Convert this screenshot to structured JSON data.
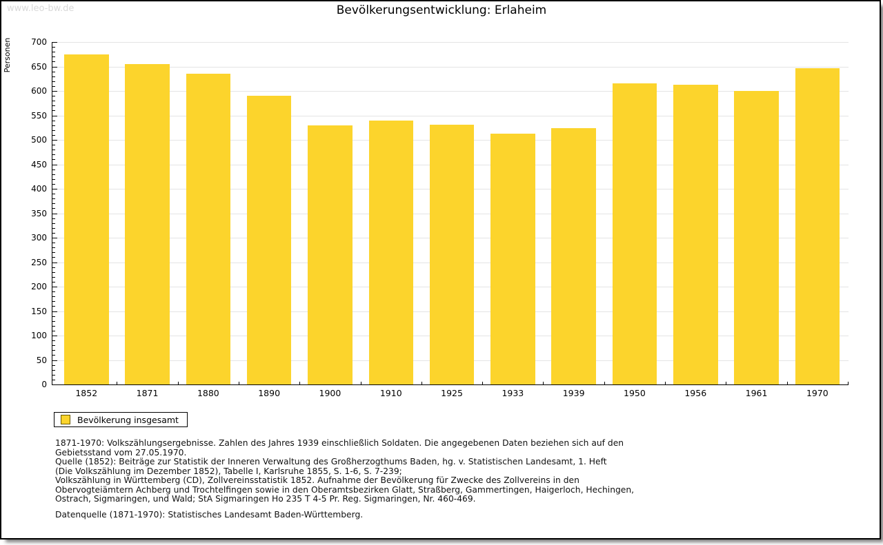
{
  "page": {
    "watermark": "www.leo-bw.de",
    "title": "Bevölkerungsentwicklung: Erlaheim"
  },
  "chart_data": {
    "type": "bar",
    "title": "Bevölkerungsentwicklung: Erlaheim",
    "xlabel": "",
    "ylabel": "Personen",
    "categories": [
      "1852",
      "1871",
      "1880",
      "1890",
      "1900",
      "1910",
      "1925",
      "1933",
      "1939",
      "1950",
      "1956",
      "1961",
      "1970"
    ],
    "series": [
      {
        "name": "Bevölkerung insgesamt",
        "values": [
          675,
          655,
          635,
          590,
          530,
          540,
          531,
          512,
          524,
          615,
          612,
          600,
          646
        ]
      }
    ],
    "ylim": [
      0,
      700
    ],
    "ytick_step": 50,
    "yminor_step": 10,
    "grid": true,
    "legend_position": "bottom-left",
    "bar_color": "#FCD42C",
    "swatch_border_color": "#6b5900",
    "grid_color": "#e4e4e4",
    "axis_color": "#000000"
  },
  "footer": {
    "lines": [
      "1871-1970: Volkszählungsergebnisse. Zahlen des Jahres 1939 einschließlich Soldaten. Die angegebenen Daten beziehen sich auf den",
      "Gebietsstand vom 27.05.1970.",
      "Quelle (1852): Beiträge zur Statistik der Inneren Verwaltung des Großherzogthums Baden, hg. v. Statistischen Landesamt, 1. Heft",
      "(Die Volkszählung im Dezember 1852), Tabelle I, Karlsruhe 1855, S. 1-6, S. 7-239;",
      "Volkszählung in Württemberg (CD), Zollvereinsstatistik 1852. Aufnahme der Bevölkerung für Zwecke des Zollvereins in den",
      "Obervogteiämtern Achberg und Trochtelfingen sowie in den Oberamtsbezirken Glatt, Straßberg, Gammertingen, Haigerloch, Hechingen,",
      "Ostrach, Sigmaringen, und Wald; StA Sigmaringen Ho 235 T 4-5 Pr. Reg. Sigmaringen, Nr. 460-469."
    ],
    "datasource": "Datenquelle (1871-1970): Statistisches Landesamt Baden-Württemberg."
  }
}
